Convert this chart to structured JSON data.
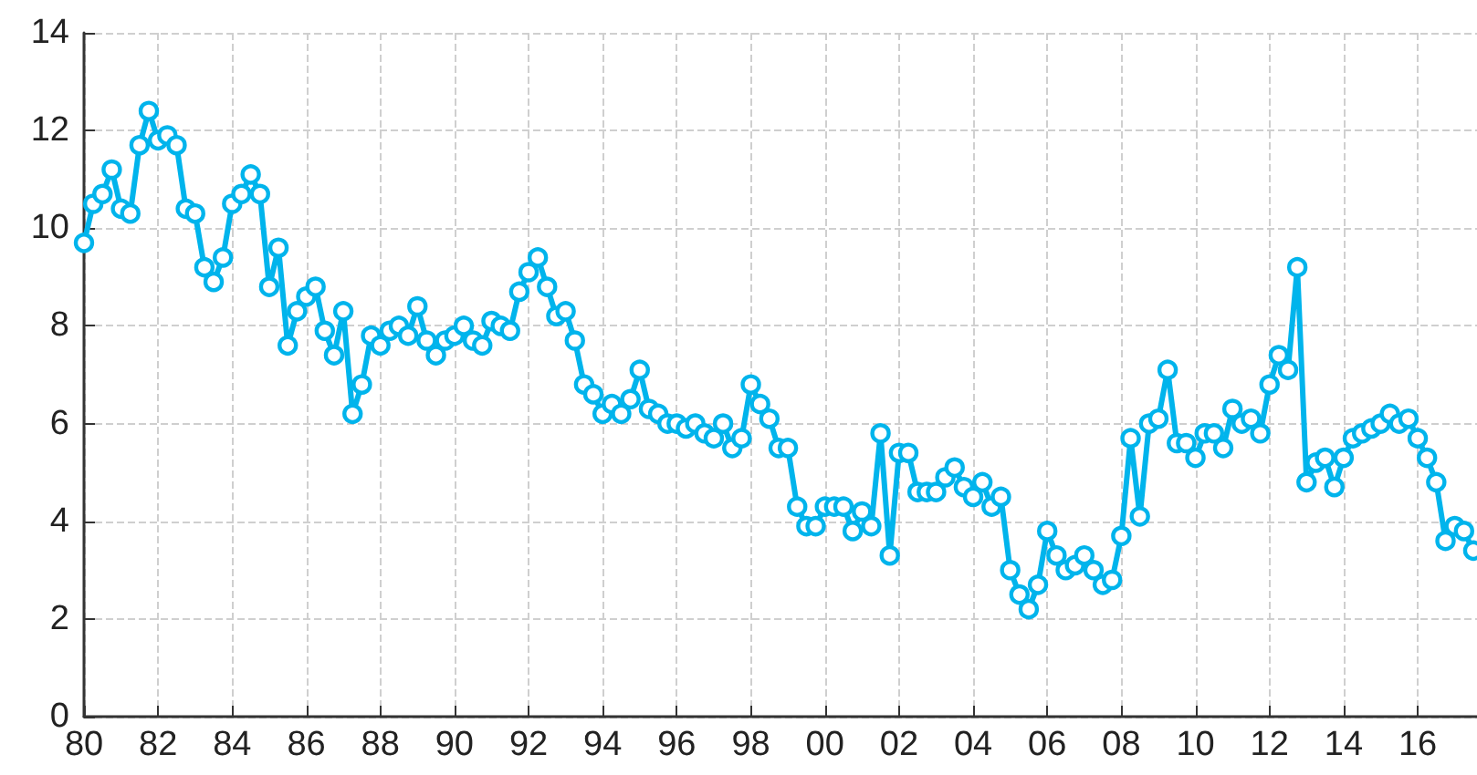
{
  "chart_data": {
    "type": "line",
    "marker": "circle",
    "line_style": "solid",
    "grid": true,
    "xlim": [
      1980,
      2017.6
    ],
    "ylim": [
      0,
      14
    ],
    "xticks": [
      {
        "value": 1980,
        "label": "80"
      },
      {
        "value": 1982,
        "label": "82"
      },
      {
        "value": 1984,
        "label": "84"
      },
      {
        "value": 1986,
        "label": "86"
      },
      {
        "value": 1988,
        "label": "88"
      },
      {
        "value": 1990,
        "label": "90"
      },
      {
        "value": 1992,
        "label": "92"
      },
      {
        "value": 1994,
        "label": "94"
      },
      {
        "value": 1996,
        "label": "96"
      },
      {
        "value": 1998,
        "label": "98"
      },
      {
        "value": 2000,
        "label": "00"
      },
      {
        "value": 2002,
        "label": "02"
      },
      {
        "value": 2004,
        "label": "04"
      },
      {
        "value": 2006,
        "label": "06"
      },
      {
        "value": 2008,
        "label": "08"
      },
      {
        "value": 2010,
        "label": "10"
      },
      {
        "value": 2012,
        "label": "12"
      },
      {
        "value": 2014,
        "label": "14"
      },
      {
        "value": 2016,
        "label": "16"
      }
    ],
    "yticks": [
      0,
      2,
      4,
      6,
      8,
      10,
      12,
      14
    ],
    "x": [
      1980,
      1980.25,
      1980.5,
      1980.75,
      1981,
      1981.25,
      1981.5,
      1981.75,
      1982,
      1982.25,
      1982.5,
      1982.75,
      1983,
      1983.25,
      1983.5,
      1983.75,
      1984,
      1984.25,
      1984.5,
      1984.75,
      1985,
      1985.25,
      1985.5,
      1985.75,
      1986,
      1986.25,
      1986.5,
      1986.75,
      1987,
      1987.25,
      1987.5,
      1987.75,
      1988,
      1988.25,
      1988.5,
      1988.75,
      1989,
      1989.25,
      1989.5,
      1989.75,
      1990,
      1990.25,
      1990.5,
      1990.75,
      1991,
      1991.25,
      1991.5,
      1991.75,
      1992,
      1992.25,
      1992.5,
      1992.75,
      1993,
      1993.25,
      1993.5,
      1993.75,
      1994,
      1994.25,
      1994.5,
      1994.75,
      1995,
      1995.25,
      1995.5,
      1995.75,
      1996,
      1996.25,
      1996.5,
      1996.75,
      1997,
      1997.25,
      1997.5,
      1997.75,
      1998,
      1998.25,
      1998.5,
      1998.75,
      1999,
      1999.25,
      1999.5,
      1999.75,
      2000,
      2000.25,
      2000.5,
      2000.75,
      2001,
      2001.25,
      2001.5,
      2001.75,
      2002,
      2002.25,
      2002.5,
      2002.75,
      2003,
      2003.25,
      2003.5,
      2003.75,
      2004,
      2004.25,
      2004.5,
      2004.75,
      2005,
      2005.25,
      2005.5,
      2005.75,
      2006,
      2006.25,
      2006.5,
      2006.75,
      2007,
      2007.25,
      2007.5,
      2007.75,
      2008,
      2008.25,
      2008.5,
      2008.75,
      2009,
      2009.25,
      2009.5,
      2009.75,
      2010,
      2010.25,
      2010.5,
      2010.75,
      2011,
      2011.25,
      2011.5,
      2011.75,
      2012,
      2012.25,
      2012.5,
      2012.75,
      2013,
      2013.25,
      2013.5,
      2013.75,
      2014,
      2014.25,
      2014.5,
      2014.75,
      2015,
      2015.25,
      2015.5,
      2015.75,
      2016,
      2016.25,
      2016.5,
      2016.75,
      2017,
      2017.25,
      2017.5
    ],
    "series": [
      {
        "color": "#00b4ec",
        "values": [
          9.7,
          10.5,
          10.7,
          11.2,
          10.4,
          10.3,
          11.7,
          12.4,
          11.8,
          11.9,
          11.7,
          10.4,
          10.3,
          9.2,
          8.9,
          9.4,
          10.5,
          10.7,
          11.1,
          10.7,
          8.8,
          9.6,
          7.6,
          8.3,
          8.6,
          8.8,
          7.9,
          7.4,
          8.3,
          6.2,
          6.8,
          7.8,
          7.6,
          7.9,
          8.0,
          7.8,
          8.4,
          7.7,
          7.4,
          7.7,
          7.8,
          8.0,
          7.7,
          7.6,
          8.1,
          8.0,
          7.9,
          8.7,
          9.1,
          9.4,
          8.8,
          8.2,
          8.3,
          7.7,
          6.8,
          6.6,
          6.2,
          6.4,
          6.2,
          6.5,
          7.1,
          6.3,
          6.2,
          6.0,
          6.0,
          5.9,
          6.0,
          5.8,
          5.7,
          6.0,
          5.5,
          5.7,
          6.8,
          6.4,
          6.1,
          5.5,
          5.5,
          4.3,
          3.9,
          3.9,
          4.3,
          4.3,
          4.3,
          3.8,
          4.2,
          3.9,
          5.8,
          3.3,
          5.4,
          5.4,
          4.6,
          4.6,
          4.6,
          4.9,
          5.1,
          4.7,
          4.5,
          4.8,
          4.3,
          4.5,
          3.0,
          2.5,
          2.2,
          2.7,
          3.8,
          3.3,
          3.0,
          3.1,
          3.3,
          3.0,
          2.7,
          2.8,
          3.7,
          5.7,
          4.1,
          6.0,
          6.1,
          7.1,
          5.6,
          5.6,
          5.3,
          5.8,
          5.8,
          5.5,
          6.3,
          6.0,
          6.1,
          5.8,
          6.8,
          7.4,
          7.1,
          9.2,
          4.8,
          5.2,
          5.3,
          4.7,
          5.3,
          5.7,
          5.8,
          5.9,
          6.0,
          6.2,
          6.0,
          6.1,
          5.7,
          5.3,
          4.8,
          3.6,
          3.9,
          3.8,
          3.4
        ]
      }
    ]
  }
}
